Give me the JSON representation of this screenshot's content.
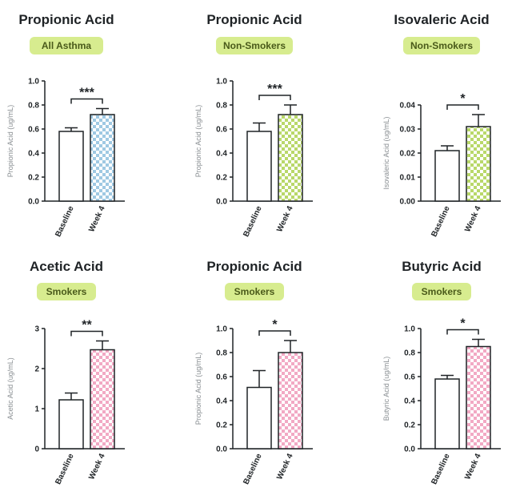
{
  "colors": {
    "badge": "#d7ec8f",
    "axis": "#1f2326",
    "bar_outline": "#1f2326",
    "baseline_fill": "#ffffff"
  },
  "chart_data": [
    {
      "type": "bar",
      "title": "Propionic Acid",
      "badge": "All Asthma",
      "ylabel": "Propionic Acid (ug/mL)",
      "categories": [
        "Baseline",
        "Week 4"
      ],
      "values": [
        0.58,
        0.72
      ],
      "errors": [
        0.03,
        0.05
      ],
      "ylim": [
        0,
        1.0
      ],
      "yticks": [
        "0.0",
        "0.2",
        "0.4",
        "0.6",
        "0.8",
        "1.0"
      ],
      "significance": "***",
      "pattern_color": "#9fc9e3"
    },
    {
      "type": "bar",
      "title": "Propionic Acid",
      "badge": "Non-Smokers",
      "ylabel": "Propionic Acid (ug/mL)",
      "categories": [
        "Baseline",
        "Week 4"
      ],
      "values": [
        0.58,
        0.72
      ],
      "errors": [
        0.07,
        0.08
      ],
      "ylim": [
        0,
        1.0
      ],
      "yticks": [
        "0.0",
        "0.2",
        "0.4",
        "0.6",
        "0.8",
        "1.0"
      ],
      "significance": "***",
      "pattern_color": "#b9d86a"
    },
    {
      "type": "bar",
      "title": "Isovaleric Acid",
      "badge": "Non-Smokers",
      "ylabel": "Isovaleric Acid (ug/mL)",
      "categories": [
        "Baseline",
        "Week 4"
      ],
      "values": [
        0.021,
        0.031
      ],
      "errors": [
        0.002,
        0.005
      ],
      "ylim": [
        0,
        0.04
      ],
      "yticks": [
        "0.00",
        "0.01",
        "0.02",
        "0.03",
        "0.04"
      ],
      "significance": "*",
      "pattern_color": "#b9d86a"
    },
    {
      "type": "bar",
      "title": "Acetic Acid",
      "badge": "Smokers",
      "ylabel": "Acetic Acid (ug/mL)",
      "categories": [
        "Baseline",
        "Week 4"
      ],
      "values": [
        1.22,
        2.47
      ],
      "errors": [
        0.17,
        0.22
      ],
      "ylim": [
        0,
        3
      ],
      "yticks": [
        "0",
        "1",
        "2",
        "3"
      ],
      "significance": "**",
      "pattern_color": "#f2a9c4"
    },
    {
      "type": "bar",
      "title": "Propionic Acid",
      "badge": "Smokers",
      "ylabel": "Propionic Acid (ug/mL)",
      "categories": [
        "Baseline",
        "Week 4"
      ],
      "values": [
        0.51,
        0.8
      ],
      "errors": [
        0.14,
        0.1
      ],
      "ylim": [
        0,
        1.0
      ],
      "yticks": [
        "0.0",
        "0.2",
        "0.4",
        "0.6",
        "0.8",
        "1.0"
      ],
      "significance": "*",
      "pattern_color": "#f2a9c4"
    },
    {
      "type": "bar",
      "title": "Butyric Acid",
      "badge": "Smokers",
      "ylabel": "Butyric Acid (ug/mL)",
      "categories": [
        "Baseline",
        "Week 4"
      ],
      "values": [
        0.58,
        0.85
      ],
      "errors": [
        0.03,
        0.06
      ],
      "ylim": [
        0,
        1.0
      ],
      "yticks": [
        "0.0",
        "0.2",
        "0.4",
        "0.6",
        "0.8",
        "1.0"
      ],
      "significance": "*",
      "pattern_color": "#f2a9c4"
    }
  ]
}
